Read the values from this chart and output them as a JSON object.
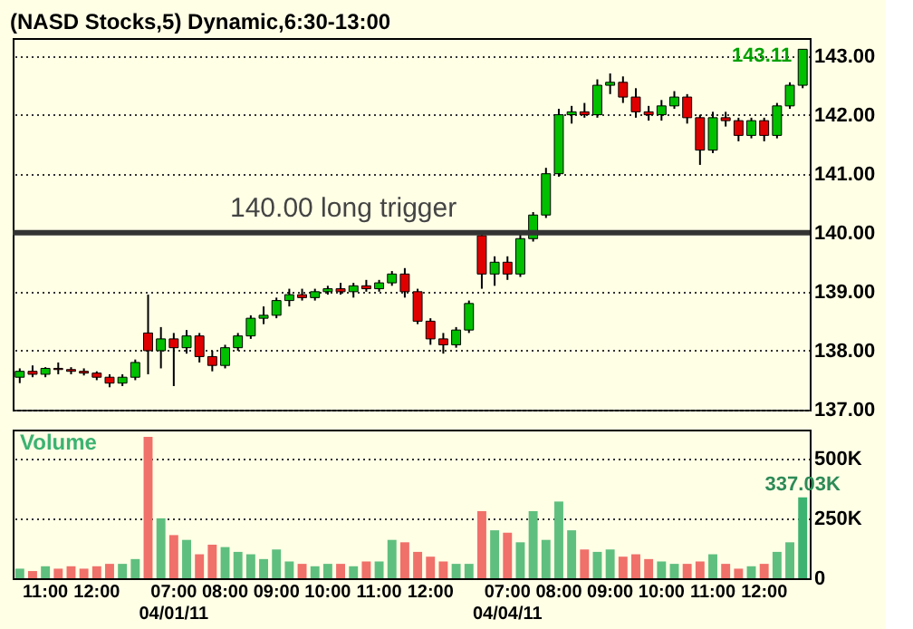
{
  "chart_data": [
    {
      "type": "candlestick",
      "title": "(NASD Stocks,5) Dynamic,6:30-13:00",
      "categories": [
        null,
        null,
        null,
        null,
        null,
        null,
        null,
        null,
        null,
        null,
        null,
        null,
        null,
        null,
        null,
        null,
        null,
        null,
        null,
        null,
        null,
        null,
        null,
        null,
        null,
        null,
        null,
        null,
        null,
        null,
        null,
        null,
        null,
        null,
        null,
        null,
        null,
        null,
        null,
        null,
        null,
        null,
        null,
        null,
        null,
        null,
        null,
        null,
        null,
        null,
        null,
        null,
        null,
        null,
        null,
        null,
        null,
        null,
        null,
        null,
        null,
        null
      ],
      "ohlc": [
        [
          137.55,
          137.7,
          137.45,
          137.65
        ],
        [
          137.65,
          137.75,
          137.55,
          137.6
        ],
        [
          137.6,
          137.72,
          137.55,
          137.7
        ],
        [
          137.7,
          137.8,
          137.6,
          137.68
        ],
        [
          137.68,
          137.72,
          137.6,
          137.65
        ],
        [
          137.65,
          137.7,
          137.58,
          137.62
        ],
        [
          137.62,
          137.65,
          137.5,
          137.55
        ],
        [
          137.55,
          137.6,
          137.38,
          137.45
        ],
        [
          137.45,
          137.6,
          137.4,
          137.55
        ],
        [
          137.55,
          137.85,
          137.5,
          137.8
        ],
        [
          138.3,
          138.95,
          137.6,
          138.0
        ],
        [
          138.0,
          138.4,
          137.7,
          138.2
        ],
        [
          138.2,
          138.3,
          137.4,
          138.05
        ],
        [
          138.05,
          138.35,
          137.95,
          138.25
        ],
        [
          138.25,
          138.3,
          137.8,
          137.9
        ],
        [
          137.9,
          138.0,
          137.65,
          137.75
        ],
        [
          137.75,
          138.1,
          137.7,
          138.05
        ],
        [
          138.05,
          138.3,
          138.0,
          138.25
        ],
        [
          138.25,
          138.6,
          138.2,
          138.55
        ],
        [
          138.55,
          138.75,
          138.45,
          138.6
        ],
        [
          138.6,
          138.9,
          138.55,
          138.85
        ],
        [
          138.85,
          139.05,
          138.75,
          138.95
        ],
        [
          138.95,
          139.05,
          138.85,
          138.9
        ],
        [
          138.9,
          139.05,
          138.85,
          139.0
        ],
        [
          139.0,
          139.1,
          138.95,
          139.05
        ],
        [
          139.05,
          139.15,
          138.95,
          139.0
        ],
        [
          139.0,
          139.15,
          138.9,
          139.1
        ],
        [
          139.1,
          139.2,
          139.0,
          139.05
        ],
        [
          139.05,
          139.2,
          139.0,
          139.15
        ],
        [
          139.15,
          139.35,
          139.1,
          139.3
        ],
        [
          139.3,
          139.4,
          138.9,
          139.0
        ],
        [
          139.0,
          139.05,
          138.45,
          138.5
        ],
        [
          138.5,
          138.55,
          138.1,
          138.2
        ],
        [
          138.2,
          138.3,
          137.95,
          138.1
        ],
        [
          138.1,
          138.4,
          138.05,
          138.35
        ],
        [
          138.35,
          138.85,
          138.3,
          138.8
        ],
        [
          139.95,
          140.0,
          139.05,
          139.3
        ],
        [
          139.3,
          139.6,
          139.1,
          139.5
        ],
        [
          139.5,
          139.6,
          139.2,
          139.3
        ],
        [
          139.3,
          140.0,
          139.25,
          139.9
        ],
        [
          139.9,
          140.35,
          139.85,
          140.3
        ],
        [
          140.3,
          141.1,
          140.25,
          141.0
        ],
        [
          141.0,
          142.1,
          140.95,
          142.0
        ],
        [
          142.0,
          142.15,
          141.85,
          142.05
        ],
        [
          142.05,
          142.2,
          141.95,
          142.0
        ],
        [
          142.0,
          142.6,
          141.95,
          142.5
        ],
        [
          142.5,
          142.7,
          142.35,
          142.55
        ],
        [
          142.55,
          142.65,
          142.2,
          142.3
        ],
        [
          142.3,
          142.45,
          141.95,
          142.05
        ],
        [
          142.05,
          142.15,
          141.9,
          142.0
        ],
        [
          142.0,
          142.25,
          141.9,
          142.15
        ],
        [
          142.15,
          142.4,
          142.1,
          142.3
        ],
        [
          142.3,
          142.35,
          141.85,
          141.95
        ],
        [
          141.95,
          142.0,
          141.15,
          141.4
        ],
        [
          141.4,
          142.05,
          141.35,
          141.95
        ],
        [
          141.95,
          142.05,
          141.8,
          141.9
        ],
        [
          141.9,
          141.95,
          141.55,
          141.65
        ],
        [
          141.65,
          141.95,
          141.6,
          141.9
        ],
        [
          141.9,
          141.95,
          141.55,
          141.65
        ],
        [
          141.65,
          142.2,
          141.6,
          142.15
        ],
        [
          142.15,
          142.55,
          142.1,
          142.5
        ],
        [
          142.5,
          143.11,
          142.45,
          143.11
        ]
      ],
      "colors": [
        "#00c000",
        "#e00000",
        "#00c000",
        "#e00000",
        "#e00000",
        "#e00000",
        "#e00000",
        "#e00000",
        "#00c000",
        "#00c000",
        "#e00000",
        "#00c000",
        "#e00000",
        "#00c000",
        "#e00000",
        "#e00000",
        "#00c000",
        "#00c000",
        "#00c000",
        "#00c000",
        "#00c000",
        "#00c000",
        "#e00000",
        "#00c000",
        "#00c000",
        "#e00000",
        "#00c000",
        "#e00000",
        "#00c000",
        "#00c000",
        "#e00000",
        "#e00000",
        "#e00000",
        "#e00000",
        "#00c000",
        "#00c000",
        "#e00000",
        "#00c000",
        "#e00000",
        "#00c000",
        "#00c000",
        "#00c000",
        "#00c000",
        "#00c000",
        "#e00000",
        "#00c000",
        "#00c000",
        "#e00000",
        "#e00000",
        "#e00000",
        "#00c000",
        "#00c000",
        "#e00000",
        "#e00000",
        "#00c000",
        "#e00000",
        "#e00000",
        "#00c000",
        "#e00000",
        "#00c000",
        "#00c000",
        "#00c000"
      ],
      "value_labels": [
        null,
        null,
        null,
        null,
        null,
        null,
        null,
        null,
        null,
        null,
        null,
        null,
        null,
        null,
        null,
        null,
        null,
        null,
        null,
        null,
        null,
        null,
        null,
        null,
        null,
        null,
        null,
        null,
        null,
        null,
        null,
        null,
        null,
        null,
        null,
        null,
        null,
        null,
        null,
        null,
        null,
        null,
        null,
        null,
        null,
        null,
        null,
        null,
        null,
        null,
        null,
        null,
        null,
        null,
        null,
        null,
        null,
        null,
        null,
        null,
        null,
        "143.11"
      ],
      "ylim": [
        137,
        143.3
      ],
      "yticks": [
        {
          "value": 137,
          "label": "137.00"
        },
        {
          "value": 138,
          "label": "138.00"
        },
        {
          "value": 139,
          "label": "139.00"
        },
        {
          "value": 140,
          "label": "140.00"
        },
        {
          "value": 141,
          "label": "141.00"
        },
        {
          "value": 142,
          "label": "142.00"
        },
        {
          "value": 143,
          "label": "143.00"
        }
      ],
      "ref_lines": [
        {
          "axis": "y",
          "value": 140,
          "label": "140.00 long trigger",
          "color": "#333333"
        }
      ],
      "grid": "y",
      "tick_labels": "y"
    },
    {
      "type": "bar",
      "title": "Volume",
      "categories": [
        null,
        null,
        "11:00",
        null,
        null,
        null,
        "12:00",
        null,
        null,
        null,
        null,
        null,
        "07:00\n04/01/11",
        null,
        null,
        null,
        "08:00",
        null,
        null,
        null,
        "09:00",
        null,
        null,
        null,
        "10:00",
        null,
        null,
        null,
        "11:00",
        null,
        null,
        null,
        "12:00",
        null,
        null,
        null,
        null,
        null,
        "07:00\n04/04/11",
        null,
        null,
        null,
        "08:00",
        null,
        null,
        null,
        "09:00",
        null,
        null,
        null,
        "10:00",
        null,
        null,
        null,
        "11:00",
        null,
        null,
        null,
        "12:00",
        null,
        null,
        null
      ],
      "values": [
        40000,
        30000,
        50000,
        40000,
        50000,
        40000,
        50000,
        60000,
        60000,
        80000,
        590000,
        250000,
        180000,
        160000,
        100000,
        140000,
        130000,
        110000,
        100000,
        80000,
        120000,
        70000,
        60000,
        50000,
        60000,
        60000,
        50000,
        70000,
        70000,
        160000,
        150000,
        110000,
        90000,
        70000,
        60000,
        60000,
        280000,
        200000,
        190000,
        150000,
        280000,
        160000,
        320000,
        200000,
        120000,
        110000,
        120000,
        90000,
        100000,
        80000,
        70000,
        60000,
        60000,
        70000,
        100000,
        60000,
        40000,
        50000,
        60000,
        110000,
        150000,
        337030
      ],
      "colors": [
        "#5fbf7f",
        "#f0706a",
        "#5fbf7f",
        "#f0706a",
        "#f0706a",
        "#f0706a",
        "#f0706a",
        "#f0706a",
        "#5fbf7f",
        "#5fbf7f",
        "#f0706a",
        "#5fbf7f",
        "#f0706a",
        "#5fbf7f",
        "#f0706a",
        "#f0706a",
        "#5fbf7f",
        "#5fbf7f",
        "#5fbf7f",
        "#5fbf7f",
        "#5fbf7f",
        "#5fbf7f",
        "#f0706a",
        "#5fbf7f",
        "#5fbf7f",
        "#f0706a",
        "#5fbf7f",
        "#f0706a",
        "#5fbf7f",
        "#5fbf7f",
        "#f0706a",
        "#f0706a",
        "#f0706a",
        "#f0706a",
        "#5fbf7f",
        "#5fbf7f",
        "#f0706a",
        "#5fbf7f",
        "#f0706a",
        "#5fbf7f",
        "#5fbf7f",
        "#5fbf7f",
        "#5fbf7f",
        "#5fbf7f",
        "#f0706a",
        "#5fbf7f",
        "#5fbf7f",
        "#f0706a",
        "#f0706a",
        "#f0706a",
        "#5fbf7f",
        "#5fbf7f",
        "#f0706a",
        "#f0706a",
        "#5fbf7f",
        "#f0706a",
        "#f0706a",
        "#5fbf7f",
        "#f0706a",
        "#5fbf7f",
        "#5fbf7f",
        "#3cb371"
      ],
      "value_labels": [
        null,
        null,
        null,
        null,
        null,
        null,
        null,
        null,
        null,
        null,
        null,
        null,
        null,
        null,
        null,
        null,
        null,
        null,
        null,
        null,
        null,
        null,
        null,
        null,
        null,
        null,
        null,
        null,
        null,
        null,
        null,
        null,
        null,
        null,
        null,
        null,
        null,
        null,
        null,
        null,
        null,
        null,
        null,
        null,
        null,
        null,
        null,
        null,
        null,
        null,
        null,
        null,
        null,
        null,
        null,
        null,
        null,
        null,
        null,
        null,
        null,
        "337.03K"
      ],
      "ylim": [
        0,
        620000
      ],
      "yticks": [
        0,
        {
          "value": 250000,
          "label": "250K"
        },
        {
          "value": 500000,
          "label": "500K"
        }
      ],
      "grid": "y"
    }
  ]
}
